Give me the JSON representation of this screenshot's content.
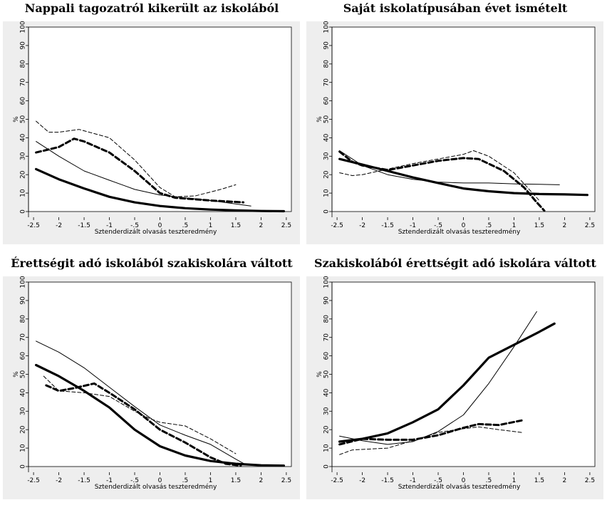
{
  "chart_data": [
    {
      "type": "line",
      "title": "Nappali tagozatról kikerült az iskolából",
      "xlabel": "Sztenderdizált olvasás teszteredmény",
      "ylabel": "%",
      "xticks": [
        "-2.5",
        "-2",
        "-1.5",
        "-1",
        "-.5",
        "0",
        ".5",
        "1",
        "1.5",
        "2",
        "2.5"
      ],
      "yticks": [
        "0",
        "10",
        "20",
        "30",
        "40",
        "50",
        "60",
        "70",
        "80",
        "90",
        "100"
      ],
      "xlim": [
        -2.6,
        2.6
      ],
      "ylim": [
        0,
        100
      ],
      "grid": false,
      "series": [
        {
          "style": "thick-solid",
          "points": [
            [
              -2.45,
              23
            ],
            [
              -2,
              17.5
            ],
            [
              -1.5,
              12.5
            ],
            [
              -1,
              8
            ],
            [
              -0.5,
              5
            ],
            [
              0,
              3
            ],
            [
              0.5,
              1.8
            ],
            [
              1,
              1.1
            ],
            [
              1.5,
              0.6
            ],
            [
              2,
              0.3
            ],
            [
              2.45,
              0.2
            ]
          ]
        },
        {
          "style": "thick-dashed",
          "points": [
            [
              -2.45,
              32
            ],
            [
              -2,
              35
            ],
            [
              -1.7,
              39.5
            ],
            [
              -1.5,
              38
            ],
            [
              -1,
              32
            ],
            [
              -0.5,
              22
            ],
            [
              0,
              10
            ],
            [
              0.3,
              7.5
            ],
            [
              1,
              6
            ],
            [
              1.65,
              5
            ]
          ]
        },
        {
          "style": "thin-solid",
          "points": [
            [
              -2.45,
              38
            ],
            [
              -2,
              30
            ],
            [
              -1.5,
              22
            ],
            [
              -1,
              17
            ],
            [
              -0.7,
              14
            ],
            [
              -0.5,
              12
            ],
            [
              0,
              9
            ],
            [
              0.5,
              7.5
            ],
            [
              1,
              6
            ],
            [
              1.8,
              3
            ]
          ]
        },
        {
          "style": "thin-dashed",
          "points": [
            [
              -2.45,
              49
            ],
            [
              -2.2,
              43
            ],
            [
              -2,
              43
            ],
            [
              -1.6,
              44.5
            ],
            [
              -1.4,
              43
            ],
            [
              -1,
              40
            ],
            [
              -0.5,
              28
            ],
            [
              0,
              13
            ],
            [
              0.3,
              8
            ],
            [
              0.7,
              8.5
            ],
            [
              1.2,
              12
            ],
            [
              1.5,
              14.5
            ]
          ]
        }
      ]
    },
    {
      "type": "line",
      "title": "Saját iskolatípusában évet ismételt",
      "xlabel": "Sztenderdizált olvasás teszteredmény",
      "ylabel": "%",
      "xticks": [
        "-2.5",
        "-2",
        "-1.5",
        "-1",
        "-.5",
        "0",
        ".5",
        "1",
        "1.5",
        "2",
        "2.5"
      ],
      "yticks": [
        "0",
        "10",
        "20",
        "30",
        "40",
        "50",
        "60",
        "70",
        "80",
        "90",
        "100"
      ],
      "xlim": [
        -2.6,
        2.6
      ],
      "ylim": [
        0,
        100
      ],
      "grid": false,
      "series": [
        {
          "style": "thick-solid",
          "points": [
            [
              -2.45,
              28.5
            ],
            [
              -2,
              25.5
            ],
            [
              -1.5,
              22
            ],
            [
              -1,
              18.5
            ],
            [
              -0.5,
              15.5
            ],
            [
              0,
              12.5
            ],
            [
              0.5,
              11
            ],
            [
              1,
              10
            ],
            [
              1.5,
              9.5
            ],
            [
              2,
              9.3
            ],
            [
              2.45,
              9
            ]
          ]
        },
        {
          "style": "thick-dashed",
          "points": [
            [
              -2.45,
              32.5
            ],
            [
              -2.2,
              27
            ],
            [
              -2,
              25
            ],
            [
              -1.5,
              22.5
            ],
            [
              -1,
              25
            ],
            [
              -0.5,
              27.5
            ],
            [
              0,
              29
            ],
            [
              0.3,
              28.5
            ],
            [
              0.8,
              22
            ],
            [
              1.2,
              13
            ],
            [
              1.45,
              5
            ],
            [
              1.6,
              0.5
            ]
          ]
        },
        {
          "style": "thin-solid",
          "points": [
            [
              -2.45,
              33
            ],
            [
              -2,
              25
            ],
            [
              -1.5,
              20
            ],
            [
              -1,
              17.5
            ],
            [
              -0.5,
              16
            ],
            [
              0,
              15.5
            ],
            [
              0.5,
              15.5
            ],
            [
              1,
              15
            ],
            [
              1.5,
              14.8
            ],
            [
              1.9,
              14.5
            ]
          ]
        },
        {
          "style": "thin-dashed",
          "points": [
            [
              -2.45,
              21
            ],
            [
              -2.2,
              19.5
            ],
            [
              -2,
              20
            ],
            [
              -1.5,
              23
            ],
            [
              -1,
              26
            ],
            [
              -0.5,
              28.5
            ],
            [
              0,
              31
            ],
            [
              0.2,
              33
            ],
            [
              0.5,
              30
            ],
            [
              1,
              21
            ],
            [
              1.3,
              12
            ],
            [
              1.5,
              6
            ]
          ]
        }
      ]
    },
    {
      "type": "line",
      "title": "Érettségit adó iskolából szakiskolára váltott",
      "xlabel": "Sztenderdizált olvasás teszteredmény",
      "ylabel": "%",
      "xticks": [
        "-2.5",
        "-2",
        "-1.5",
        "-1",
        "-.5",
        "0",
        ".5",
        "1",
        "1.5",
        "2",
        "2.5"
      ],
      "yticks": [
        "0",
        "10",
        "20",
        "30",
        "40",
        "50",
        "60",
        "70",
        "80",
        "90",
        "100"
      ],
      "xlim": [
        -2.6,
        2.6
      ],
      "ylim": [
        0,
        100
      ],
      "grid": false,
      "series": [
        {
          "style": "thick-solid",
          "points": [
            [
              -2.45,
              55
            ],
            [
              -2,
              49
            ],
            [
              -1.5,
              41
            ],
            [
              -1,
              32
            ],
            [
              -0.5,
              20
            ],
            [
              0,
              11
            ],
            [
              0.5,
              6
            ],
            [
              1,
              3
            ],
            [
              1.5,
              1.5
            ],
            [
              2,
              0.7
            ],
            [
              2.45,
              0.5
            ]
          ]
        },
        {
          "style": "thick-dashed",
          "points": [
            [
              -2.25,
              44
            ],
            [
              -2,
              41
            ],
            [
              -1.7,
              42.5
            ],
            [
              -1.3,
              45
            ],
            [
              -1,
              40
            ],
            [
              -0.5,
              31
            ],
            [
              0,
              20
            ],
            [
              0.5,
              13
            ],
            [
              1,
              5
            ],
            [
              1.3,
              1.5
            ],
            [
              1.6,
              0.5
            ]
          ]
        },
        {
          "style": "thin-solid",
          "points": [
            [
              -2.45,
              68
            ],
            [
              -2,
              62
            ],
            [
              -1.5,
              53.5
            ],
            [
              -1,
              43
            ],
            [
              -0.5,
              32.5
            ],
            [
              0,
              22.5
            ],
            [
              0.5,
              17
            ],
            [
              1,
              12
            ],
            [
              1.5,
              4
            ],
            [
              1.7,
              1
            ]
          ]
        },
        {
          "style": "thin-dashed",
          "points": [
            [
              -2.3,
              49
            ],
            [
              -2,
              41
            ],
            [
              -1.5,
              40
            ],
            [
              -1,
              38
            ],
            [
              -0.5,
              30
            ],
            [
              -0.2,
              26
            ],
            [
              0,
              24
            ],
            [
              0.5,
              22
            ],
            [
              1,
              15
            ],
            [
              1.5,
              7
            ]
          ]
        }
      ]
    },
    {
      "type": "line",
      "title": "Szakiskolából érettségit adó iskolára váltott",
      "xlabel": "Sztenderdizált olvasás teszteredmény",
      "ylabel": "%",
      "xticks": [
        "-2.5",
        "-2",
        "-1.5",
        "-1",
        "-.5",
        "0",
        ".5",
        "1",
        "1.5",
        "2",
        "2.5"
      ],
      "yticks": [
        "0",
        "10",
        "20",
        "30",
        "40",
        "50",
        "60",
        "70",
        "80",
        "90",
        "100"
      ],
      "xlim": [
        -2.6,
        2.6
      ],
      "ylim": [
        0,
        100
      ],
      "grid": false,
      "series": [
        {
          "style": "thick-solid",
          "points": [
            [
              -2.45,
              13.5
            ],
            [
              -2,
              15
            ],
            [
              -1.5,
              18
            ],
            [
              -1,
              24
            ],
            [
              -0.5,
              31
            ],
            [
              0,
              44
            ],
            [
              0.5,
              59
            ],
            [
              1,
              66
            ],
            [
              1.5,
              73
            ],
            [
              1.8,
              77.5
            ]
          ]
        },
        {
          "style": "thick-dashed",
          "points": [
            [
              -2.45,
              12
            ],
            [
              -2,
              15
            ],
            [
              -1.5,
              14.5
            ],
            [
              -1,
              14.5
            ],
            [
              -0.5,
              17
            ],
            [
              0,
              21
            ],
            [
              0.3,
              23
            ],
            [
              0.7,
              22.5
            ],
            [
              1.15,
              25
            ]
          ]
        },
        {
          "style": "thin-solid",
          "points": [
            [
              -2.45,
              16.5
            ],
            [
              -2,
              14
            ],
            [
              -1.5,
              12
            ],
            [
              -1,
              13.5
            ],
            [
              -0.5,
              19
            ],
            [
              0,
              28
            ],
            [
              0.5,
              45
            ],
            [
              1,
              65
            ],
            [
              1.45,
              84
            ]
          ]
        },
        {
          "style": "thin-dashed",
          "points": [
            [
              -2.45,
              6.5
            ],
            [
              -2.2,
              9
            ],
            [
              -1.5,
              10
            ],
            [
              -1,
              14
            ],
            [
              -0.5,
              18.5
            ],
            [
              0,
              20.5
            ],
            [
              0.3,
              21.5
            ],
            [
              0.7,
              20
            ],
            [
              1.15,
              18.5
            ]
          ]
        }
      ]
    }
  ]
}
